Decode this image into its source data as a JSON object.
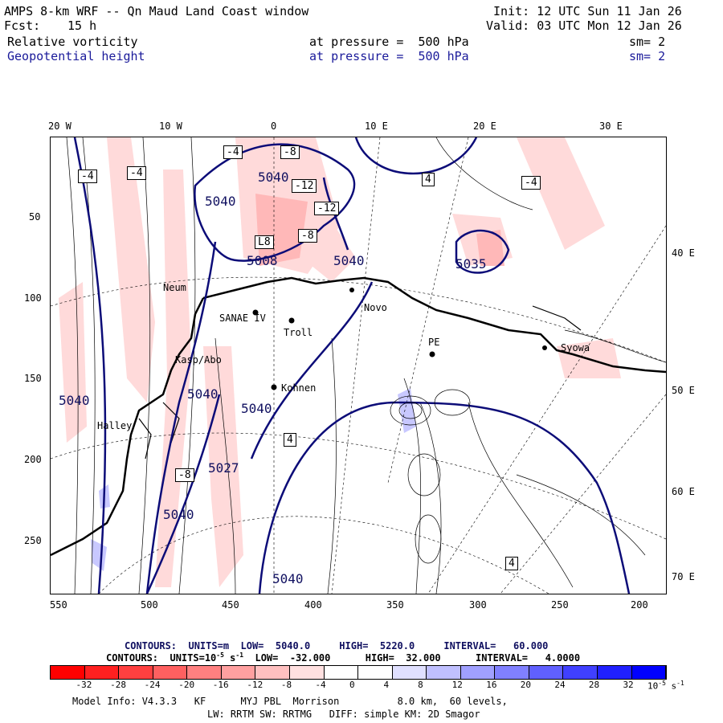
{
  "header": {
    "title": "AMPS 8-km WRF -- Qn Maud Land Coast window",
    "init": "Init: 12 UTC Sun 11 Jan 26",
    "fcst_label": "Fcst:",
    "fcst_value": "15 h",
    "valid": "Valid: 03 UTC Mon 12 Jan 26",
    "field1": {
      "name": "Relative vorticity",
      "pressure": "at pressure =  500 hPa",
      "sm": "sm= 2"
    },
    "field2": {
      "name": "Geopotential height",
      "pressure": "at pressure =  500 hPa",
      "sm": "sm= 2"
    }
  },
  "axes": {
    "top_lon": [
      "20 W",
      "10 W",
      "0",
      "10 E",
      "20 E",
      "30 E"
    ],
    "left_y": [
      "50",
      "100",
      "150",
      "200",
      "250"
    ],
    "bottom_x": [
      "550",
      "500",
      "450",
      "400",
      "350",
      "300",
      "250",
      "200"
    ],
    "right_lat": [
      "40 E",
      "50 E",
      "60 E",
      "70 E"
    ]
  },
  "stations": [
    "Neum",
    "SANAE IV",
    "Troll",
    "Novo",
    "PE",
    "Syowa",
    "Kohnen",
    "Halley",
    "Kasp/Abo"
  ],
  "height_labels": [
    "5040",
    "5040",
    "5040",
    "5040",
    "5040",
    "5040",
    "5040",
    "5040",
    "5008",
    "5035",
    "5027"
  ],
  "vort_labels": [
    "-4",
    "-4",
    "-4",
    "-4",
    "-8",
    "-12",
    "-12",
    "-8",
    "L8",
    "4",
    "4",
    "4",
    "-8"
  ],
  "contour_info": {
    "line1": "CONTOURS:  UNITS=m  LOW=  5040.0     HIGH=  5220.0     INTERVAL=   60.000",
    "line2_pre": "CONTOURS:  UNITS=10",
    "line2_sup": "-5",
    "line2_post": " s",
    "line2_sup2": "-1",
    "line2_rest": "  LOW=  -32.000      HIGH=  32.000      INTERVAL=   4.0000"
  },
  "colorbar": {
    "ticks": [
      "-32",
      "-28",
      "-24",
      "-20",
      "-16",
      "-12",
      "-8",
      "-4",
      "0",
      "4",
      "8",
      "12",
      "16",
      "20",
      "24",
      "28",
      "32"
    ],
    "unit": "10",
    "unit_sup": "-5",
    "unit_s": " s",
    "unit_sup2": "-1",
    "colors": [
      "#ff0000",
      "#ff2020",
      "#ff4040",
      "#ff6060",
      "#ff8080",
      "#ffa0a0",
      "#ffc0c0",
      "#ffe0e0",
      "#ffffff",
      "#ffffff",
      "#e0e0ff",
      "#c0c0ff",
      "#a0a0ff",
      "#8080ff",
      "#6060ff",
      "#4040ff",
      "#2020ff",
      "#0000ff"
    ]
  },
  "footer": {
    "line1": "Model Info: V4.3.3   KF      MYJ PBL  Morrison          8.0 km,  60 levels,",
    "line2": "LW: RRTM SW: RRTMG   DIFF: simple KM: 2D Smagor"
  }
}
